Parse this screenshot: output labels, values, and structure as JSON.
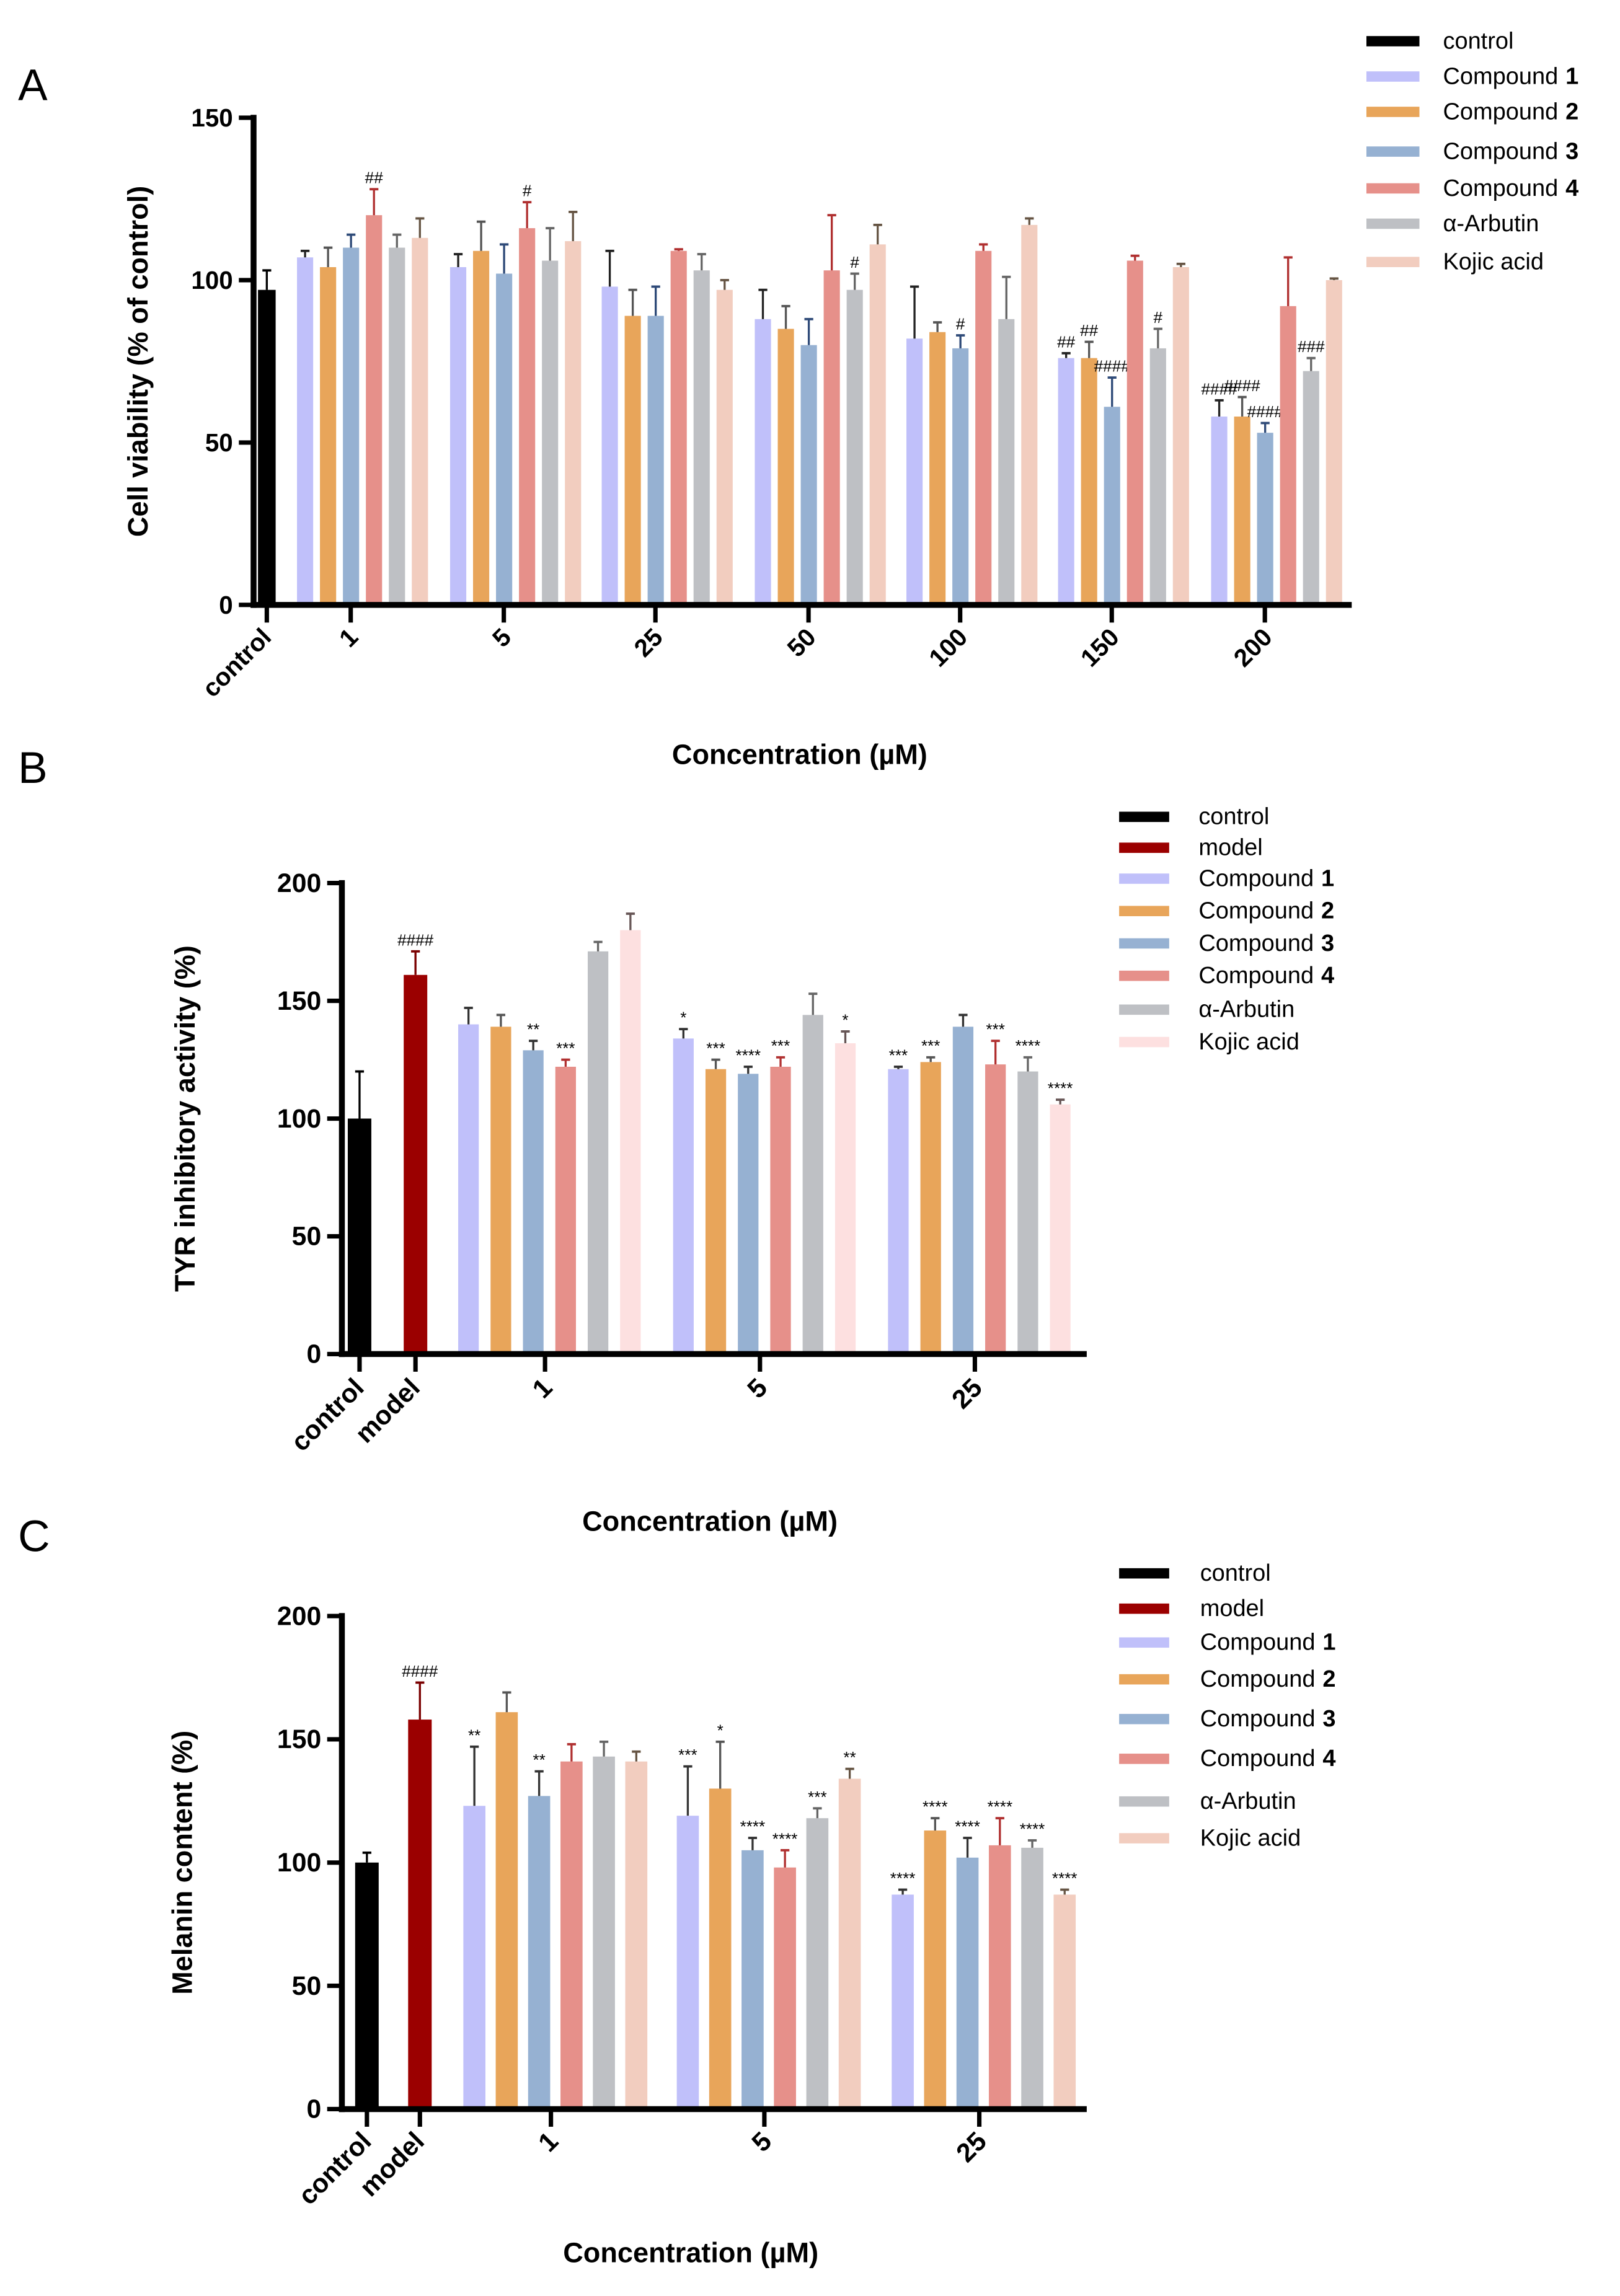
{
  "chart_data": [
    {
      "type": "bar",
      "panel": "A",
      "xlabel": "Concentration (µM)",
      "ylabel": "Cell viability (% of control)",
      "ylim": [
        0,
        150
      ],
      "yticks": [
        0,
        50,
        100,
        150
      ],
      "legend_position": "top-right",
      "controls": [
        {
          "name": "control",
          "label": "control",
          "color": "#000000",
          "value": 97,
          "error": 6,
          "sig": ""
        }
      ],
      "categories": [
        "1",
        "5",
        "25",
        "50",
        "100",
        "150",
        "200"
      ],
      "series": [
        {
          "name": "Compound",
          "num": "1",
          "color": "#c0c0fa",
          "errcolor": "#222222",
          "values": [
            107,
            104,
            98,
            88,
            82,
            76,
            58
          ],
          "errors": [
            2,
            4,
            11,
            9,
            16,
            1.5,
            5
          ],
          "sig": [
            "",
            "",
            "",
            "",
            "",
            "##",
            "####"
          ]
        },
        {
          "name": "Compound",
          "num": "2",
          "color": "#e8a55a",
          "errcolor": "#555555",
          "values": [
            104,
            109,
            89,
            85,
            84,
            76,
            58
          ],
          "errors": [
            6,
            9,
            8,
            7,
            3,
            5,
            6
          ],
          "sig": [
            "",
            "",
            "",
            "",
            "",
            "##",
            "####"
          ]
        },
        {
          "name": "Compound",
          "num": "3",
          "color": "#96b1d2",
          "errcolor": "#2e4a78",
          "values": [
            110,
            102,
            89,
            80,
            79,
            61,
            53
          ],
          "errors": [
            4,
            9,
            9,
            8,
            4,
            9,
            3
          ],
          "sig": [
            "",
            "",
            "",
            "",
            "#",
            "####",
            "####"
          ]
        },
        {
          "name": "Compound",
          "num": "4",
          "color": "#e6908a",
          "errcolor": "#b03030",
          "values": [
            120,
            116,
            109,
            103,
            109,
            106,
            92
          ],
          "errors": [
            8,
            8,
            0.5,
            17,
            2,
            1.5,
            15
          ],
          "sig": [
            "##",
            "#",
            "",
            "",
            "",
            "",
            ""
          ]
        },
        {
          "name": "α-Arbutin",
          "num": "",
          "color": "#bec0c4",
          "errcolor": "#666666",
          "values": [
            110,
            106,
            103,
            97,
            88,
            79,
            72
          ],
          "errors": [
            4,
            10,
            5,
            5,
            13,
            6,
            4
          ],
          "sig": [
            "",
            "",
            "",
            "#",
            "",
            "#",
            "###"
          ]
        },
        {
          "name": "Kojic acid",
          "num": "",
          "color": "#f2cdbf",
          "errcolor": "#665544",
          "values": [
            113,
            112,
            97,
            111,
            117,
            104,
            100
          ],
          "errors": [
            6,
            9,
            3,
            6,
            2,
            1,
            0.5
          ],
          "sig": [
            "",
            "",
            "",
            "",
            "",
            "",
            ""
          ]
        }
      ]
    },
    {
      "type": "bar",
      "panel": "B",
      "xlabel": "Concentration (µM)",
      "ylabel": "TYR inhibitory activity (%)",
      "ylim": [
        0,
        200
      ],
      "yticks": [
        0,
        50,
        100,
        150,
        200
      ],
      "legend_position": "top-right",
      "controls": [
        {
          "name": "control",
          "label": "control",
          "color": "#000000",
          "value": 100,
          "error": 20,
          "sig": ""
        },
        {
          "name": "model",
          "label": "model",
          "color": "#9b0000",
          "value": 161,
          "error": 10,
          "sig": "####"
        }
      ],
      "categories": [
        "1",
        "5",
        "25"
      ],
      "series": [
        {
          "name": "Compound",
          "num": "1",
          "color": "#c0c0fa",
          "errcolor": "#333333",
          "values": [
            140,
            134,
            121
          ],
          "errors": [
            7,
            4,
            1
          ],
          "sig": [
            "",
            "*",
            "***"
          ]
        },
        {
          "name": "Compound",
          "num": "2",
          "color": "#e8a55a",
          "errcolor": "#555555",
          "values": [
            139,
            121,
            124
          ],
          "errors": [
            5,
            4,
            2
          ],
          "sig": [
            "",
            "***",
            "***"
          ]
        },
        {
          "name": "Compound",
          "num": "3",
          "color": "#96b1d2",
          "errcolor": "#333333",
          "values": [
            129,
            119,
            139
          ],
          "errors": [
            4,
            3,
            5
          ],
          "sig": [
            "**",
            "****",
            ""
          ]
        },
        {
          "name": "Compound",
          "num": "4",
          "color": "#e6908a",
          "errcolor": "#b03030",
          "values": [
            122,
            122,
            123
          ],
          "errors": [
            3,
            4,
            10
          ],
          "sig": [
            "***",
            "***",
            "***"
          ]
        },
        {
          "name": "α-Arbutin",
          "num": "",
          "color": "#bec0c4",
          "errcolor": "#666666",
          "values": [
            171,
            144,
            120
          ],
          "errors": [
            4,
            9,
            6
          ],
          "sig": [
            "",
            "",
            "****"
          ]
        },
        {
          "name": "Kojic acid",
          "num": "",
          "color": "#fde0e0",
          "errcolor": "#665555",
          "values": [
            180,
            132,
            106
          ],
          "errors": [
            7,
            5,
            2
          ],
          "sig": [
            "",
            "*",
            "****"
          ]
        }
      ]
    },
    {
      "type": "bar",
      "panel": "C",
      "xlabel": "Concentration (µM)",
      "ylabel": "Melanin content (%)",
      "ylim": [
        0,
        200
      ],
      "yticks": [
        0,
        50,
        100,
        150,
        200
      ],
      "legend_position": "top-right",
      "controls": [
        {
          "name": "control",
          "label": "control",
          "color": "#000000",
          "value": 100,
          "error": 4,
          "sig": ""
        },
        {
          "name": "model",
          "label": "model",
          "color": "#9b0000",
          "value": 158,
          "error": 15,
          "sig": "####"
        }
      ],
      "categories": [
        "1",
        "5",
        "25"
      ],
      "series": [
        {
          "name": "Compound",
          "num": "1",
          "color": "#c0c0fa",
          "errcolor": "#333333",
          "values": [
            123,
            119,
            87
          ],
          "errors": [
            24,
            20,
            2
          ],
          "sig": [
            "**",
            "***",
            "****"
          ]
        },
        {
          "name": "Compound",
          "num": "2",
          "color": "#e8a55a",
          "errcolor": "#555555",
          "values": [
            161,
            130,
            113
          ],
          "errors": [
            8,
            19,
            5
          ],
          "sig": [
            "",
            "*",
            "****"
          ]
        },
        {
          "name": "Compound",
          "num": "3",
          "color": "#96b1d2",
          "errcolor": "#333333",
          "values": [
            127,
            105,
            102
          ],
          "errors": [
            10,
            5,
            8
          ],
          "sig": [
            "**",
            "****",
            "****"
          ]
        },
        {
          "name": "Compound",
          "num": "4",
          "color": "#e6908a",
          "errcolor": "#b03030",
          "values": [
            141,
            98,
            107
          ],
          "errors": [
            7,
            7,
            11
          ],
          "sig": [
            "",
            "****",
            "****"
          ]
        },
        {
          "name": "α-Arbutin",
          "num": "",
          "color": "#bec0c4",
          "errcolor": "#666666",
          "values": [
            143,
            118,
            106
          ],
          "errors": [
            6,
            4,
            3
          ],
          "sig": [
            "",
            "***",
            "****"
          ]
        },
        {
          "name": "Kojic acid",
          "num": "",
          "color": "#f2cdbf",
          "errcolor": "#665544",
          "values": [
            141,
            134,
            87
          ],
          "errors": [
            4,
            4,
            2
          ],
          "sig": [
            "",
            "**",
            "****"
          ]
        }
      ]
    }
  ]
}
